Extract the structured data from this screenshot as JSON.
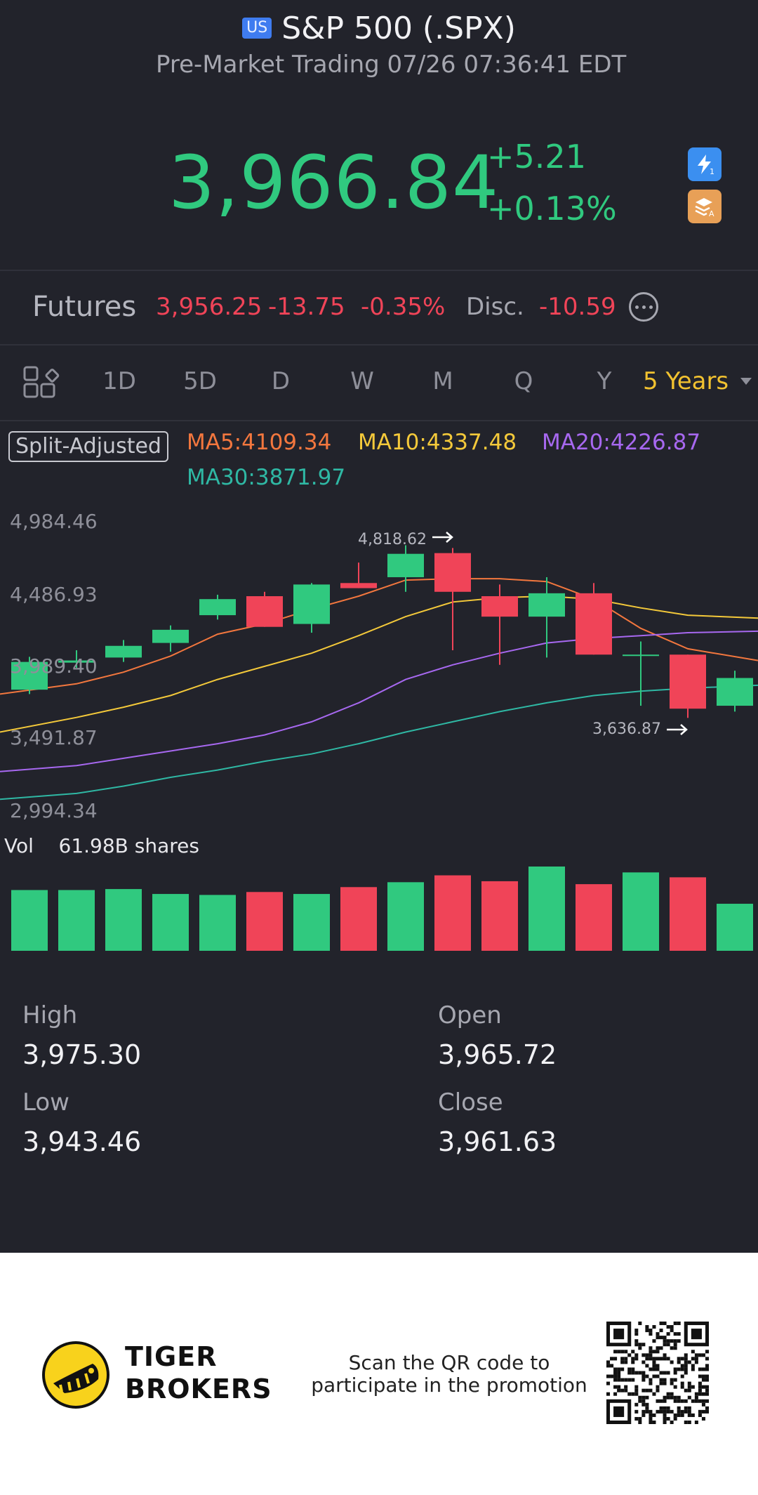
{
  "header": {
    "market_badge": "US",
    "title": "S&P 500 (.SPX)",
    "subtitle": "Pre-Market Trading 07/26 07:36:41 EDT"
  },
  "quote": {
    "price": "3,966.84",
    "change": "+5.21",
    "change_pct": "+0.13%",
    "color_up": "#30c97f",
    "color_down": "#f04458"
  },
  "futures": {
    "label": "Futures",
    "price": "3,956.25",
    "change": "-13.75",
    "change_pct": "-0.35%",
    "disc_label": "Disc.",
    "disc_value": "-10.59"
  },
  "periods": {
    "items": [
      "1D",
      "5D",
      "D",
      "W",
      "M",
      "Q",
      "Y"
    ],
    "active": "5 Years"
  },
  "chart": {
    "split_label": "Split-Adjusted",
    "ma5": "MA5:4109.34",
    "ma10": "MA10:4337.48",
    "ma20": "MA20:4226.87",
    "ma30": "MA30:3871.97",
    "y_ticks": [
      "4,984.46",
      "4,486.93",
      "3,989.40",
      "3,491.87",
      "2,994.34"
    ],
    "high_marker": "4,818.62",
    "low_marker": "3,636.87",
    "vol_label": "Vol",
    "vol_value": "61.98B shares"
  },
  "chart_data": {
    "type": "candlestick",
    "ylim": [
      2994.34,
      4984.46
    ],
    "candles": [
      {
        "o": 3830,
        "c": 4020,
        "h": 4055,
        "l": 3800,
        "dir": "up"
      },
      {
        "o": 4015,
        "c": 4030,
        "h": 4100,
        "l": 3980,
        "dir": "up"
      },
      {
        "o": 4050,
        "c": 4130,
        "h": 4170,
        "l": 4020,
        "dir": "up"
      },
      {
        "o": 4150,
        "c": 4240,
        "h": 4270,
        "l": 4090,
        "dir": "up"
      },
      {
        "o": 4340,
        "c": 4450,
        "h": 4480,
        "l": 4310,
        "dir": "up"
      },
      {
        "o": 4470,
        "c": 4260,
        "h": 4500,
        "l": 4260,
        "dir": "down"
      },
      {
        "o": 4280,
        "c": 4550,
        "h": 4560,
        "l": 4220,
        "dir": "up"
      },
      {
        "o": 4560,
        "c": 4525,
        "h": 4700,
        "l": 4525,
        "dir": "down"
      },
      {
        "o": 4600,
        "c": 4760,
        "h": 4818.62,
        "l": 4500,
        "dir": "up"
      },
      {
        "o": 4765,
        "c": 4500,
        "h": 4800,
        "l": 4100,
        "dir": "down"
      },
      {
        "o": 4470,
        "c": 4330,
        "h": 4550,
        "l": 4000,
        "dir": "down"
      },
      {
        "o": 4330,
        "c": 4490,
        "h": 4600,
        "l": 4050,
        "dir": "up"
      },
      {
        "o": 4490,
        "c": 4070,
        "h": 4560,
        "l": 4070,
        "dir": "down"
      },
      {
        "o": 4070,
        "c": 4070,
        "h": 4160,
        "l": 3720,
        "dir": "up"
      },
      {
        "o": 4070,
        "c": 3700,
        "h": 4070,
        "l": 3636.87,
        "dir": "down"
      },
      {
        "o": 3720,
        "c": 3910,
        "h": 3960,
        "l": 3680,
        "dir": "up"
      }
    ],
    "ma_series": [
      {
        "name": "MA5",
        "color": "#f3773e",
        "values": [
          3800,
          3870,
          3950,
          4060,
          4210,
          4280,
          4380,
          4470,
          4580,
          4590,
          4590,
          4570,
          4450,
          4250,
          4110,
          4030
        ]
      },
      {
        "name": "MA10",
        "color": "#f4c93a",
        "values": [
          3540,
          3640,
          3710,
          3790,
          3900,
          3990,
          4080,
          4200,
          4330,
          4430,
          4460,
          4470,
          4450,
          4390,
          4340,
          4320
        ]
      },
      {
        "name": "MA20",
        "color": "#a768f0",
        "values": [
          3270,
          3310,
          3360,
          3410,
          3460,
          3520,
          3610,
          3740,
          3900,
          4000,
          4080,
          4150,
          4180,
          4200,
          4220,
          4230
        ]
      },
      {
        "name": "MA30",
        "color": "#2fb8a4",
        "values": [
          3080,
          3120,
          3170,
          3230,
          3280,
          3340,
          3390,
          3460,
          3540,
          3610,
          3680,
          3740,
          3790,
          3820,
          3840,
          3860
        ]
      }
    ],
    "volumes": [
      {
        "v": 62,
        "dir": "up"
      },
      {
        "v": 62,
        "dir": "up"
      },
      {
        "v": 63,
        "dir": "up"
      },
      {
        "v": 58,
        "dir": "up"
      },
      {
        "v": 57,
        "dir": "up"
      },
      {
        "v": 60,
        "dir": "down"
      },
      {
        "v": 58,
        "dir": "up"
      },
      {
        "v": 65,
        "dir": "down"
      },
      {
        "v": 70,
        "dir": "up"
      },
      {
        "v": 77,
        "dir": "down"
      },
      {
        "v": 71,
        "dir": "down"
      },
      {
        "v": 86,
        "dir": "up"
      },
      {
        "v": 68,
        "dir": "down"
      },
      {
        "v": 80,
        "dir": "up"
      },
      {
        "v": 75,
        "dir": "down"
      },
      {
        "v": 48,
        "dir": "up"
      }
    ]
  },
  "stats": {
    "high_label": "High",
    "high_value": "3,975.30",
    "open_label": "Open",
    "open_value": "3,965.72",
    "low_label": "Low",
    "low_value": "3,943.46",
    "close_label": "Close",
    "close_value": "3,961.63"
  },
  "footer": {
    "brand_line1": "TIGER",
    "brand_line2": "BROKERS",
    "promo_line1": "Scan the QR code to",
    "promo_line2": "participate in the promotion"
  }
}
